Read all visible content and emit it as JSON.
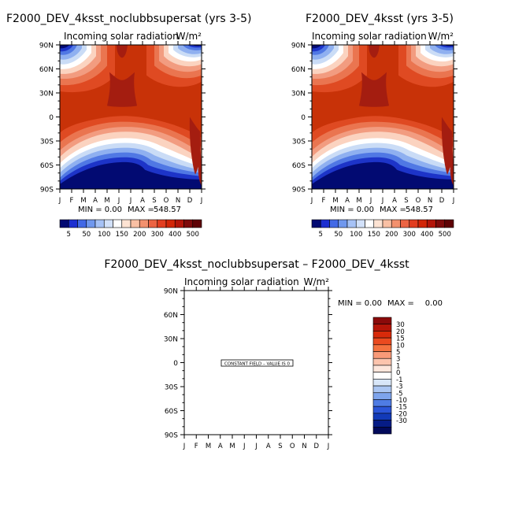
{
  "chart_data": [
    {
      "type": "heatmap",
      "title": "F2000_DEV_4ksst_noclubbsupersat (yrs 3-5)",
      "subtitle_left": "Incoming solar radiation",
      "units": "W/m²",
      "x_ticks": [
        "J",
        "F",
        "M",
        "A",
        "M",
        "J",
        "J",
        "A",
        "S",
        "O",
        "N",
        "D",
        "J"
      ],
      "y_ticks": [
        "90N",
        "60N",
        "30N",
        "0",
        "30S",
        "60S",
        "90S"
      ],
      "ylim": [
        -90,
        90
      ],
      "min_label": "MIN =",
      "min_value": "0.00",
      "max_label": "MAX =",
      "max_value": "548.57",
      "colorbar_labels": [
        "5",
        "50",
        "100",
        "150",
        "200",
        "300",
        "400",
        "500"
      ],
      "colorbar_levels": [
        5,
        25,
        50,
        75,
        100,
        125,
        150,
        175,
        200,
        250,
        300,
        350,
        400,
        450,
        500
      ],
      "colorbar_colors": [
        "#020a72",
        "#1c2fd0",
        "#4269e6",
        "#7098ee",
        "#a6c2f6",
        "#d2e1fa",
        "#ffffff",
        "#fde3d3",
        "#f9c0a4",
        "#f3916e",
        "#ec6443",
        "#e23e20",
        "#d22608",
        "#b3150a",
        "#7e0a0b",
        "#5e0205"
      ]
    },
    {
      "type": "heatmap",
      "title": "F2000_DEV_4ksst (yrs 3-5)",
      "subtitle_left": "Incoming solar radiation",
      "units": "W/m²",
      "x_ticks": [
        "J",
        "F",
        "M",
        "A",
        "M",
        "J",
        "J",
        "A",
        "S",
        "O",
        "N",
        "D",
        "J"
      ],
      "y_ticks": [
        "90N",
        "60N",
        "30N",
        "0",
        "30S",
        "60S",
        "90S"
      ],
      "ylim": [
        -90,
        90
      ],
      "min_label": "MIN =",
      "min_value": "0.00",
      "max_label": "MAX =",
      "max_value": "548.57",
      "colorbar_labels": [
        "5",
        "50",
        "100",
        "150",
        "200",
        "300",
        "400",
        "500"
      ],
      "colorbar_levels": [
        5,
        25,
        50,
        75,
        100,
        125,
        150,
        175,
        200,
        250,
        300,
        350,
        400,
        450,
        500
      ],
      "colorbar_colors": [
        "#020a72",
        "#1c2fd0",
        "#4269e6",
        "#7098ee",
        "#a6c2f6",
        "#d2e1fa",
        "#ffffff",
        "#fde3d3",
        "#f9c0a4",
        "#f3916e",
        "#ec6443",
        "#e23e20",
        "#d22608",
        "#b3150a",
        "#7e0a0b",
        "#5e0205"
      ]
    },
    {
      "type": "heatmap",
      "title": "F2000_DEV_4ksst_noclubbsupersat – F2000_DEV_4ksst",
      "subtitle_left": "Incoming solar radiation",
      "units": "W/m²",
      "x_ticks": [
        "J",
        "F",
        "M",
        "A",
        "M",
        "J",
        "J",
        "A",
        "S",
        "O",
        "N",
        "D",
        "J"
      ],
      "y_ticks": [
        "90N",
        "60N",
        "30N",
        "0",
        "30S",
        "60S",
        "90S"
      ],
      "ylim": [
        -90,
        90
      ],
      "min_label": "MIN =",
      "min_value": "0.00",
      "max_label": "MAX =",
      "max_value": "0.00",
      "constant_field_label": "CONSTANT FIELD – VALUE IS 0",
      "constant_value": 0,
      "colorbar_labels": [
        "30",
        "20",
        "15",
        "10",
        "5",
        "3",
        "1",
        "0",
        "-1",
        "-3",
        "-5",
        "-10",
        "-15",
        "-20",
        "-30"
      ],
      "colorbar_colors": [
        "#8b0a0a",
        "#b51508",
        "#d82a0a",
        "#ea4a1f",
        "#f4723f",
        "#f99a78",
        "#fcc4ad",
        "#fde6dc",
        "#ffffff",
        "#d8e6f8",
        "#abc6f2",
        "#7ea4ec",
        "#4f7ce4",
        "#2b55d8",
        "#123ab8",
        "#061c86",
        "#020a5a"
      ]
    }
  ]
}
